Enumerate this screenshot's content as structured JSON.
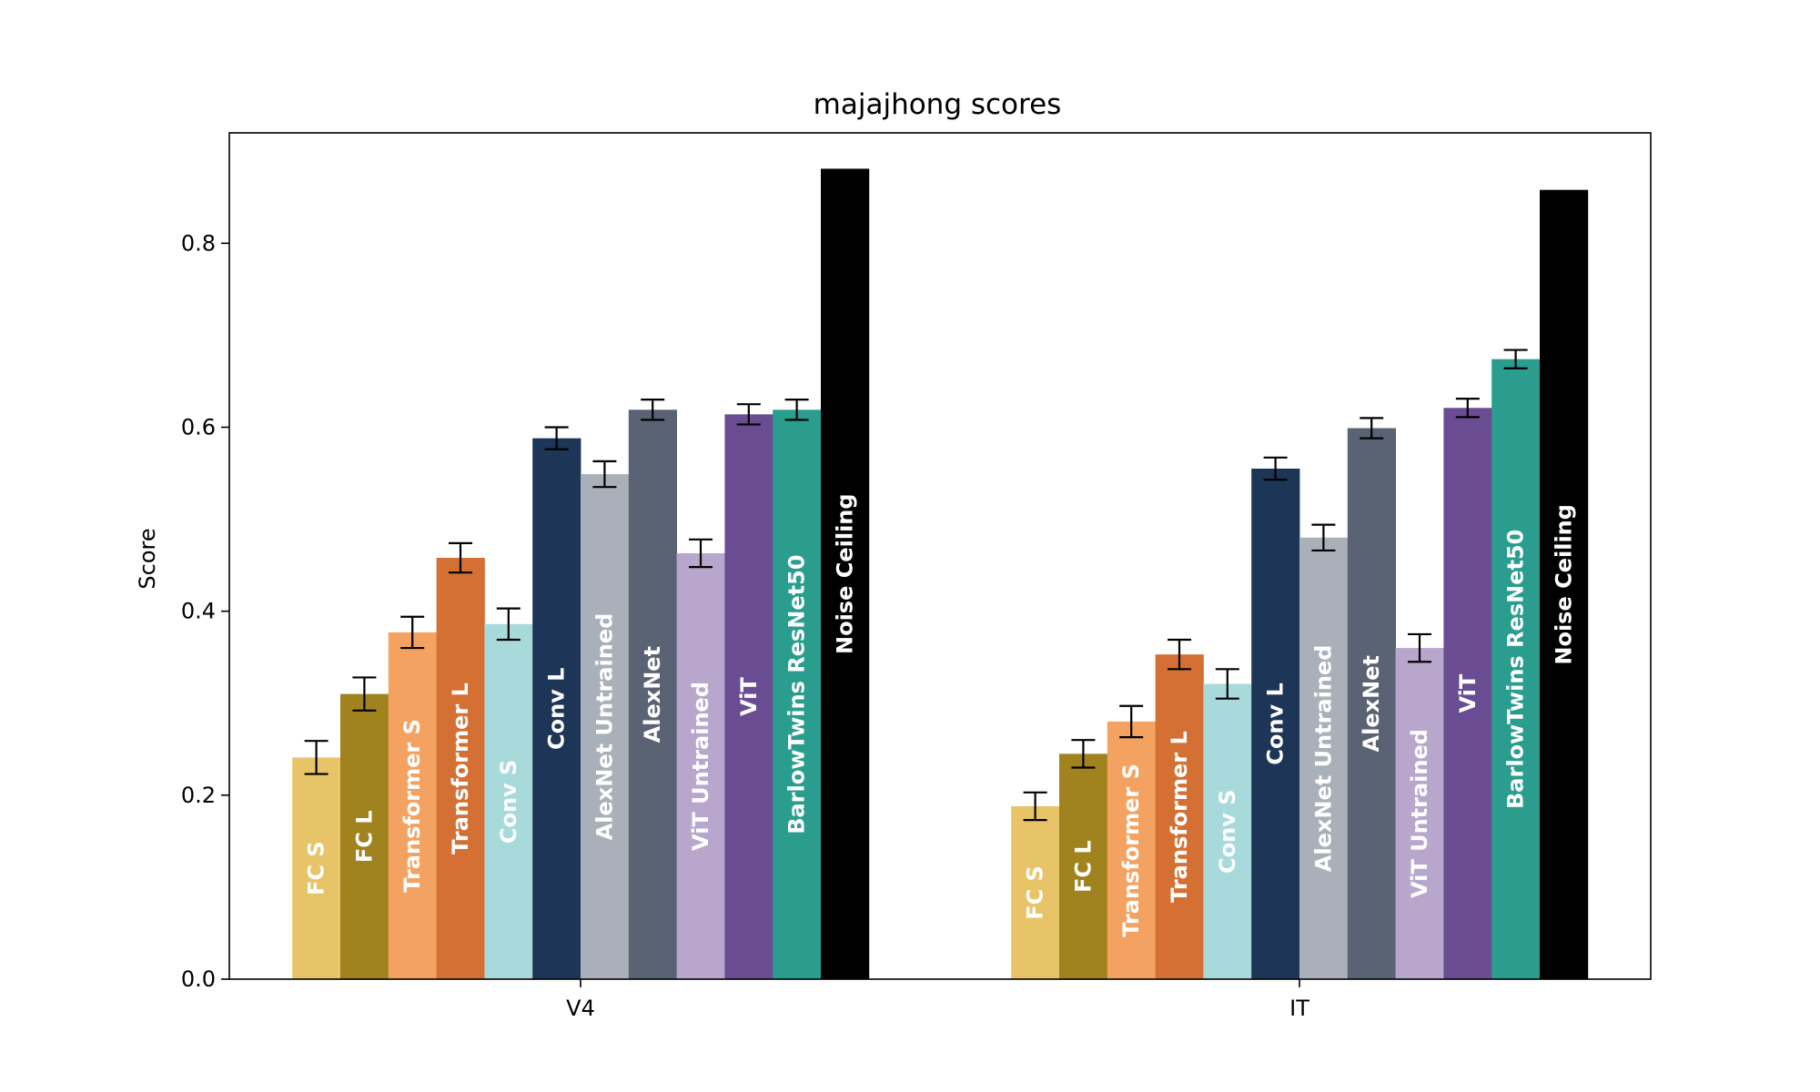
{
  "chart_data": {
    "type": "bar",
    "title": "majajhong scores",
    "xlabel": "",
    "ylabel": "Score",
    "ylim": [
      0,
      0.92
    ],
    "yticks": [
      0.0,
      0.2,
      0.4,
      0.6,
      0.8
    ],
    "ytick_labels": [
      "0.0",
      "0.2",
      "0.4",
      "0.6",
      "0.8"
    ],
    "categories": [
      "V4",
      "IT"
    ],
    "grid": false,
    "series": [
      {
        "name": "FC S",
        "color": "#E8C468",
        "label_color": "#ffffff",
        "values": [
          0.241,
          0.188
        ],
        "errors": [
          0.018,
          0.015
        ]
      },
      {
        "name": "FC L",
        "color": "#A0821E",
        "label_color": "#ffffff",
        "values": [
          0.31,
          0.245
        ],
        "errors": [
          0.018,
          0.015
        ]
      },
      {
        "name": "Transformer S",
        "color": "#F4A261",
        "label_color": "#ffffff",
        "values": [
          0.377,
          0.28
        ],
        "errors": [
          0.017,
          0.017
        ]
      },
      {
        "name": "Transformer L",
        "color": "#D47033",
        "label_color": "#ffffff",
        "values": [
          0.458,
          0.353
        ],
        "errors": [
          0.016,
          0.016
        ]
      },
      {
        "name": "Conv S",
        "color": "#A8DADC",
        "label_color": "#ffffff",
        "values": [
          0.386,
          0.321
        ],
        "errors": [
          0.017,
          0.016
        ]
      },
      {
        "name": "Conv L",
        "color": "#1D3557",
        "label_color": "#ffffff",
        "values": [
          0.588,
          0.555
        ],
        "errors": [
          0.012,
          0.012
        ]
      },
      {
        "name": "AlexNet Untrained",
        "color": "#A9B0BA",
        "label_color": "#ffffff",
        "values": [
          0.549,
          0.48
        ],
        "errors": [
          0.014,
          0.014
        ]
      },
      {
        "name": "AlexNet",
        "color": "#5A6373",
        "label_color": "#ffffff",
        "values": [
          0.619,
          0.599
        ],
        "errors": [
          0.011,
          0.011
        ]
      },
      {
        "name": "ViT Untrained",
        "color": "#B8A6CC",
        "label_color": "#ffffff",
        "values": [
          0.463,
          0.36
        ],
        "errors": [
          0.015,
          0.015
        ]
      },
      {
        "name": "ViT",
        "color": "#6A4C93",
        "label_color": "#ffffff",
        "values": [
          0.614,
          0.621
        ],
        "errors": [
          0.011,
          0.01
        ]
      },
      {
        "name": "BarlowTwins ResNet50",
        "color": "#2A9D8F",
        "label_color": "#ffffff",
        "values": [
          0.619,
          0.674
        ],
        "errors": [
          0.011,
          0.01
        ]
      },
      {
        "name": "Noise Ceiling",
        "color": "#000000",
        "label_color": "#ffffff",
        "values": [
          0.881,
          0.858
        ],
        "errors": [
          null,
          null
        ]
      }
    ]
  }
}
